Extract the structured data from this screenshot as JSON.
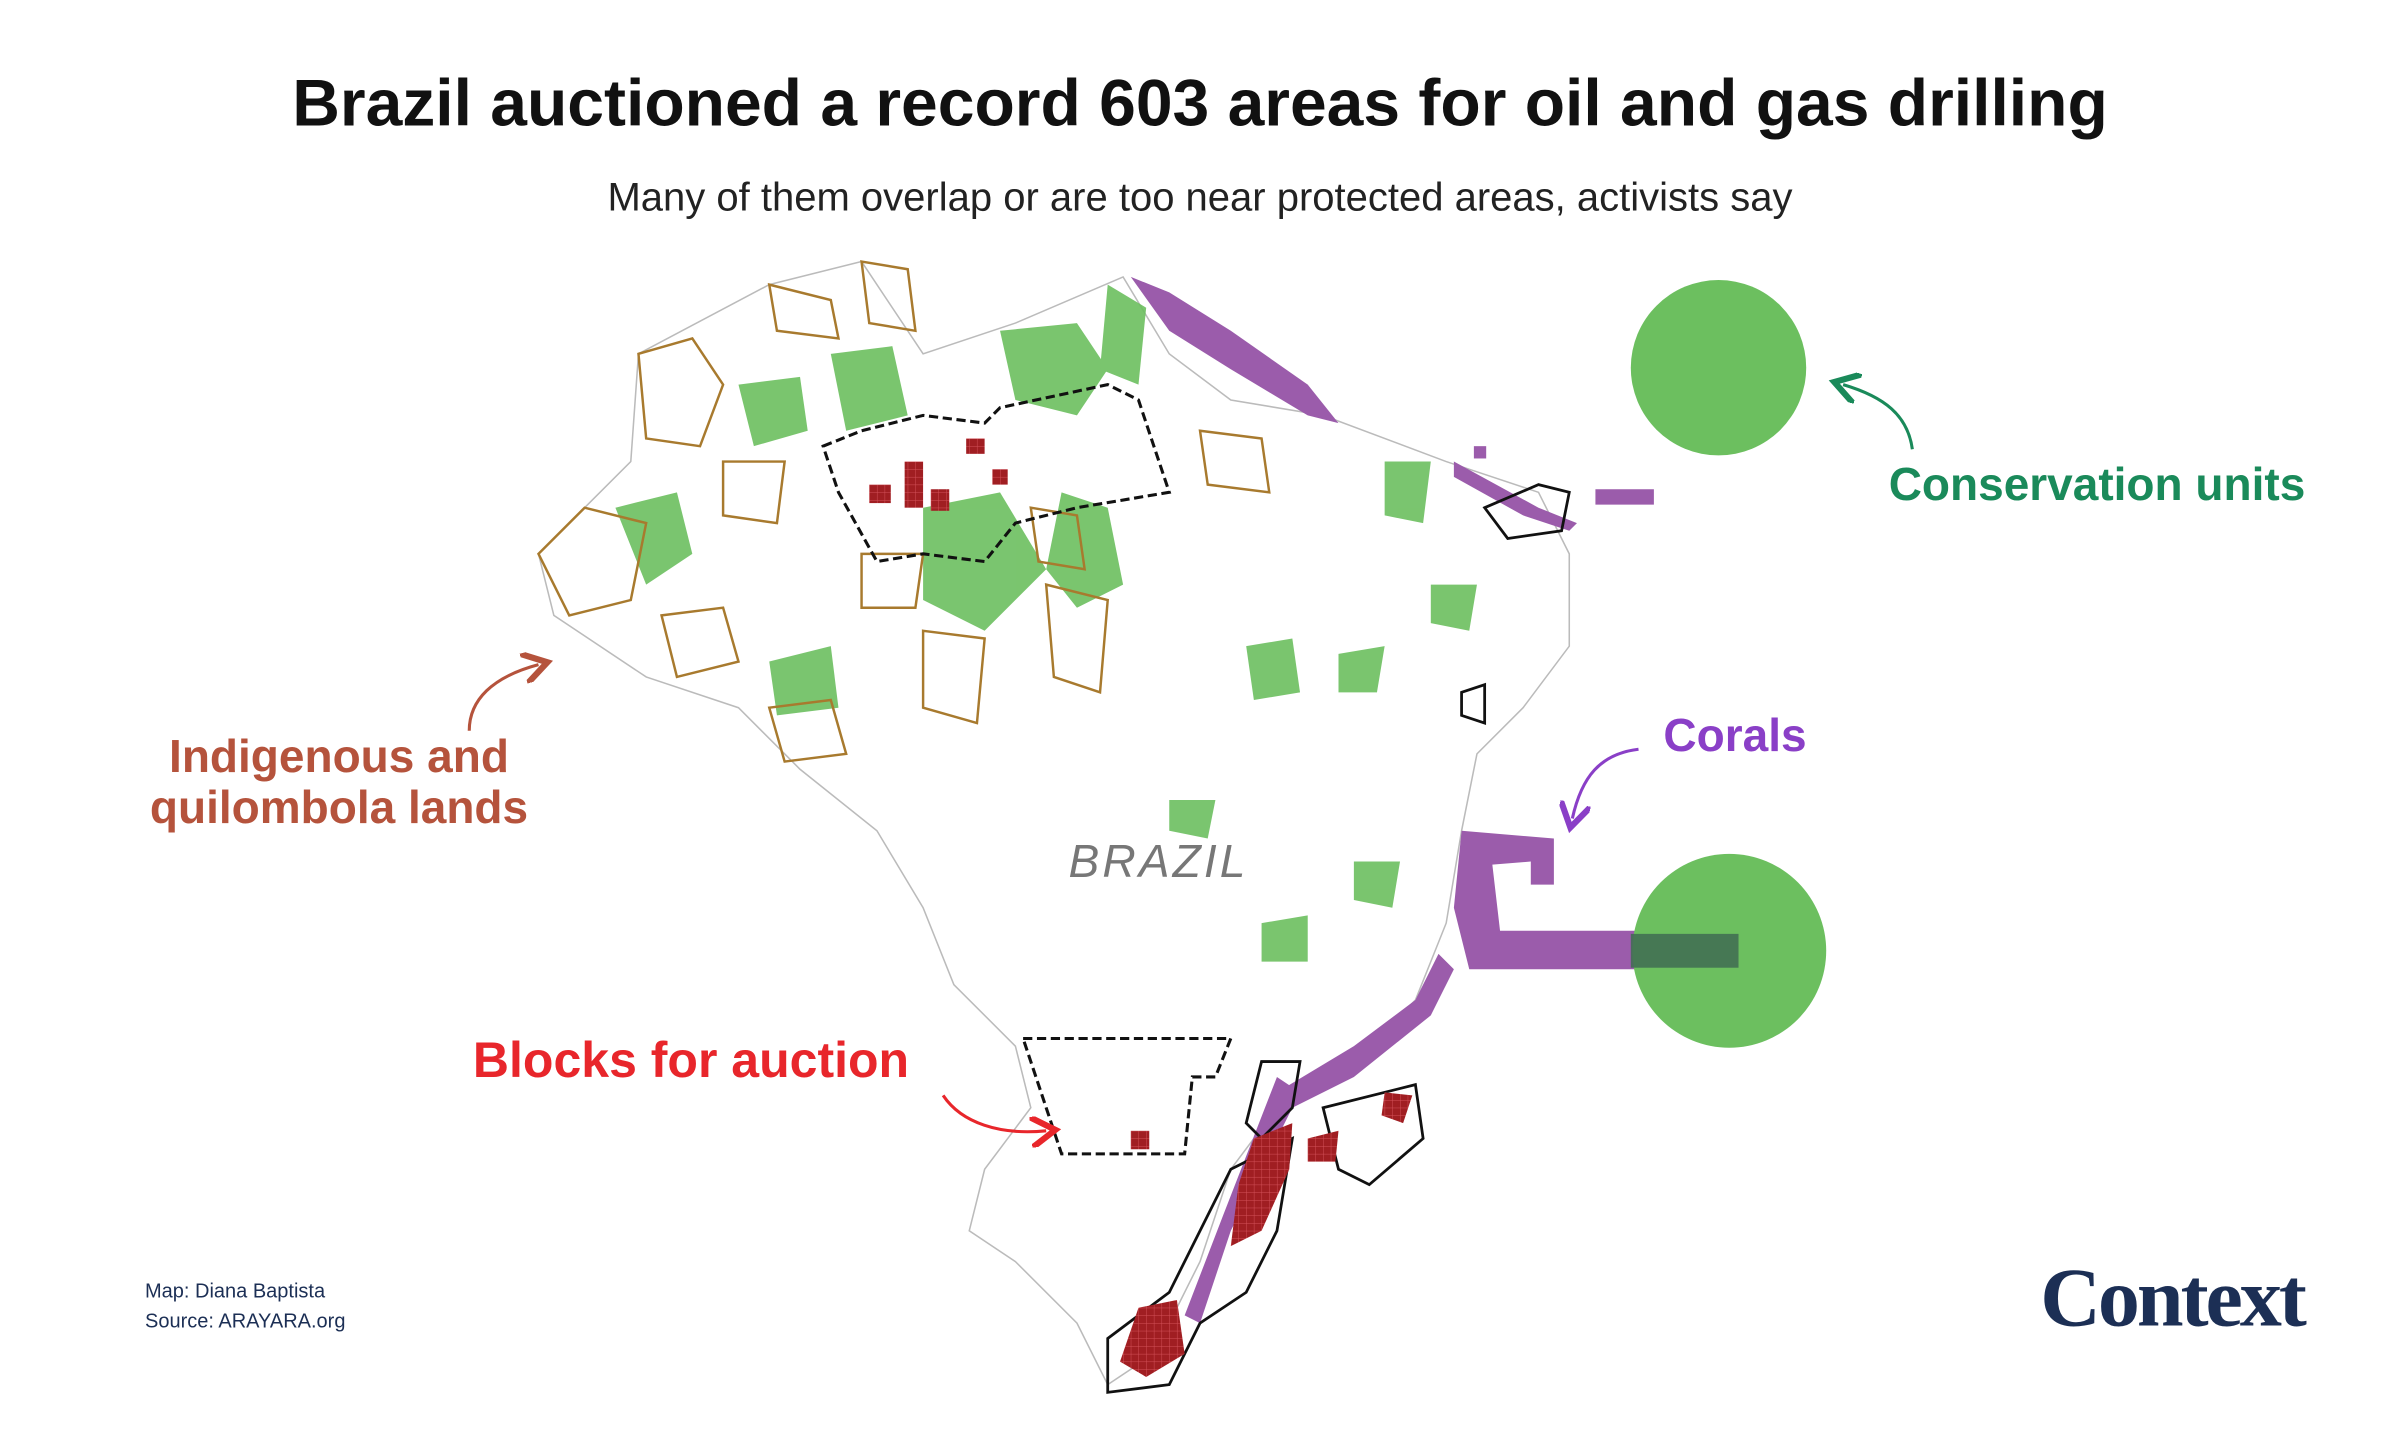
{
  "header": {
    "title": "Brazil auctioned a record 603 areas for oil and gas drilling",
    "subtitle": "Many of them overlap or are too near protected areas, activists say"
  },
  "map": {
    "country_label": "BRAZIL"
  },
  "legend": {
    "conservation": "Conservation units",
    "corals": "Corals",
    "indigenous": [
      "Indigenous and",
      "quilombola lands"
    ],
    "blocks": "Blocks for auction"
  },
  "footer": {
    "credit": "Map: Diana Baptista",
    "source": "Source: ARAYARA.org",
    "logo": "Context"
  }
}
